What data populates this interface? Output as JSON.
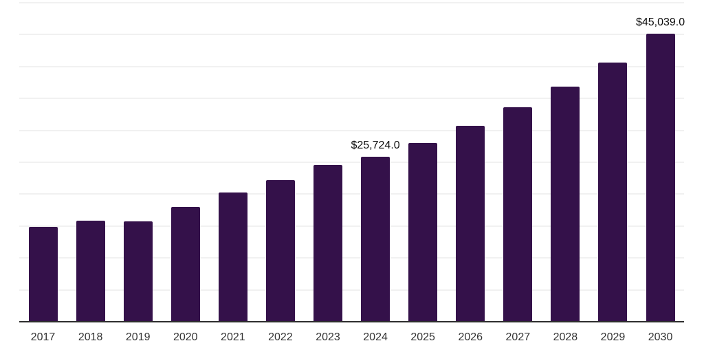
{
  "chart_data": {
    "type": "bar",
    "title": "",
    "xlabel": "",
    "ylabel": "",
    "categories": [
      "2017",
      "2018",
      "2019",
      "2020",
      "2021",
      "2022",
      "2023",
      "2024",
      "2025",
      "2026",
      "2027",
      "2028",
      "2029",
      "2030"
    ],
    "values": [
      14800,
      15700,
      15600,
      17900,
      20100,
      22100,
      24500,
      25724,
      27900,
      30600,
      33500,
      36700,
      40500,
      45039
    ],
    "value_labels": [
      "",
      "",
      "",
      "",
      "",
      "",
      "",
      "$25,724.0",
      "",
      "",
      "",
      "",
      "",
      "$45,039.0"
    ],
    "ylim": [
      0,
      50000
    ],
    "gridline_interval": 5000,
    "grid": true,
    "legend": false,
    "colors": {
      "bar": "#34114A",
      "gridline": "#F1F1F1",
      "axis_line": "#2D2D2D",
      "x_tick_label": "#333333",
      "value_label": "#0D0D0D",
      "background": "#FFFFFF"
    }
  }
}
